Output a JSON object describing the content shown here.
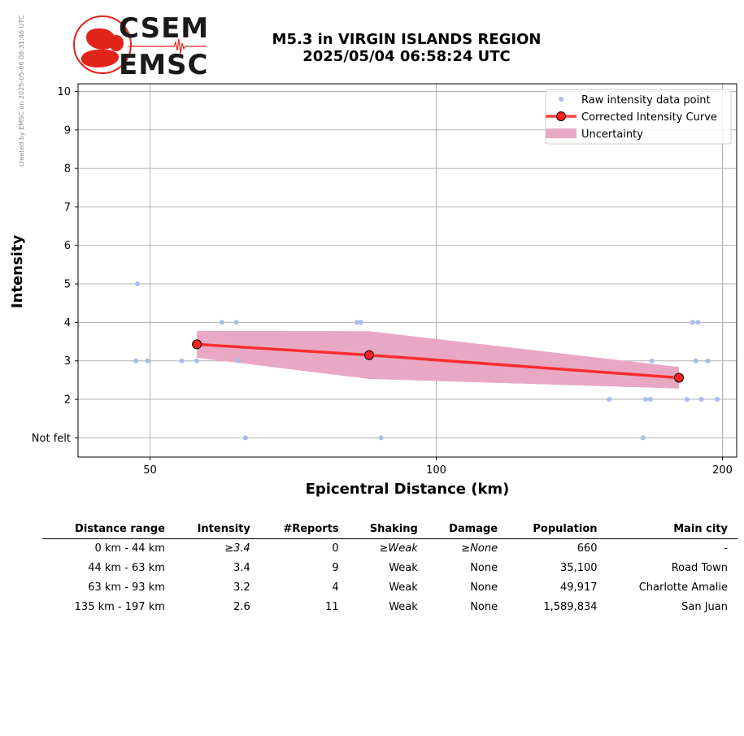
{
  "credit": "created by EMSC on 2025-05-06 08:31:46 UTC",
  "logo": {
    "line1": "CSEM",
    "line2": "EMSC",
    "color": "#e2231a"
  },
  "title": {
    "line1": "M5.3 in VIRGIN ISLANDS REGION",
    "line2": "2025/05/04 06:58:24 UTC"
  },
  "chart_data": {
    "type": "scatter",
    "xlabel": "Epicentral Distance (km)",
    "ylabel": "Intensity",
    "xscale": "log",
    "xlim": [
      42,
      207
    ],
    "ylim": [
      0.5,
      10.2
    ],
    "xticks": [
      50,
      100,
      200
    ],
    "yticks": [
      {
        "value": 1,
        "label": "Not felt"
      },
      {
        "value": 2,
        "label": "2"
      },
      {
        "value": 3,
        "label": "3"
      },
      {
        "value": 4,
        "label": "4"
      },
      {
        "value": 5,
        "label": "5"
      },
      {
        "value": 6,
        "label": "6"
      },
      {
        "value": 7,
        "label": "7"
      },
      {
        "value": 8,
        "label": "8"
      },
      {
        "value": 9,
        "label": "9"
      },
      {
        "value": 10,
        "label": "10"
      }
    ],
    "grid": true,
    "legend_position": "top-right",
    "legend": {
      "raw": "Raw intensity data point",
      "curve": "Corrected Intensity Curve",
      "band": "Uncertainty"
    },
    "colors": {
      "raw": "#aabbee",
      "curve": "#ff2020",
      "band": "#e8a8c4"
    },
    "raw_points": [
      {
        "x": 48.5,
        "y": 5
      },
      {
        "x": 48.3,
        "y": 3
      },
      {
        "x": 49.7,
        "y": 3
      },
      {
        "x": 54,
        "y": 3
      },
      {
        "x": 56,
        "y": 3
      },
      {
        "x": 59.5,
        "y": 4
      },
      {
        "x": 61.6,
        "y": 4
      },
      {
        "x": 62,
        "y": 3
      },
      {
        "x": 63,
        "y": 1
      },
      {
        "x": 82.5,
        "y": 4
      },
      {
        "x": 83.3,
        "y": 4
      },
      {
        "x": 87.5,
        "y": 1
      },
      {
        "x": 152,
        "y": 2
      },
      {
        "x": 165,
        "y": 1
      },
      {
        "x": 166,
        "y": 2
      },
      {
        "x": 168,
        "y": 2
      },
      {
        "x": 168.5,
        "y": 3
      },
      {
        "x": 183.5,
        "y": 2
      },
      {
        "x": 186,
        "y": 4
      },
      {
        "x": 188.5,
        "y": 4
      },
      {
        "x": 187.5,
        "y": 3
      },
      {
        "x": 190,
        "y": 2
      },
      {
        "x": 193,
        "y": 3
      },
      {
        "x": 197.5,
        "y": 2
      }
    ],
    "curve": [
      {
        "x": 56,
        "y": 3.43
      },
      {
        "x": 85,
        "y": 3.15
      },
      {
        "x": 180,
        "y": 2.56
      }
    ],
    "uncertainty": {
      "upper": [
        {
          "x": 56,
          "y": 3.78
        },
        {
          "x": 85,
          "y": 3.77
        },
        {
          "x": 180,
          "y": 2.84
        }
      ],
      "lower": [
        {
          "x": 56,
          "y": 3.08
        },
        {
          "x": 85,
          "y": 2.53
        },
        {
          "x": 180,
          "y": 2.28
        }
      ]
    }
  },
  "table": {
    "headers": [
      "Distance range",
      "Intensity",
      "#Reports",
      "Shaking",
      "Damage",
      "Population",
      "Main city"
    ],
    "rows": [
      {
        "cells": [
          "0 km -   44 km",
          "≥3.4",
          "0",
          "≥Weak",
          "≥None",
          "660",
          "-"
        ],
        "italic": [
          false,
          true,
          false,
          true,
          true,
          false,
          false
        ]
      },
      {
        "cells": [
          "44 km -   63 km",
          "3.4",
          "9",
          "Weak",
          "None",
          "35,100",
          "Road Town"
        ],
        "italic": [
          false,
          false,
          false,
          false,
          false,
          false,
          false
        ]
      },
      {
        "cells": [
          "63 km -   93 km",
          "3.2",
          "4",
          "Weak",
          "None",
          "49,917",
          "Charlotte Amalie"
        ],
        "italic": [
          false,
          false,
          false,
          false,
          false,
          false,
          false
        ]
      },
      {
        "cells": [
          "135 km -  197 km",
          "2.6",
          "11",
          "Weak",
          "None",
          "1,589,834",
          "San Juan"
        ],
        "italic": [
          false,
          false,
          false,
          false,
          false,
          false,
          false
        ]
      }
    ]
  }
}
